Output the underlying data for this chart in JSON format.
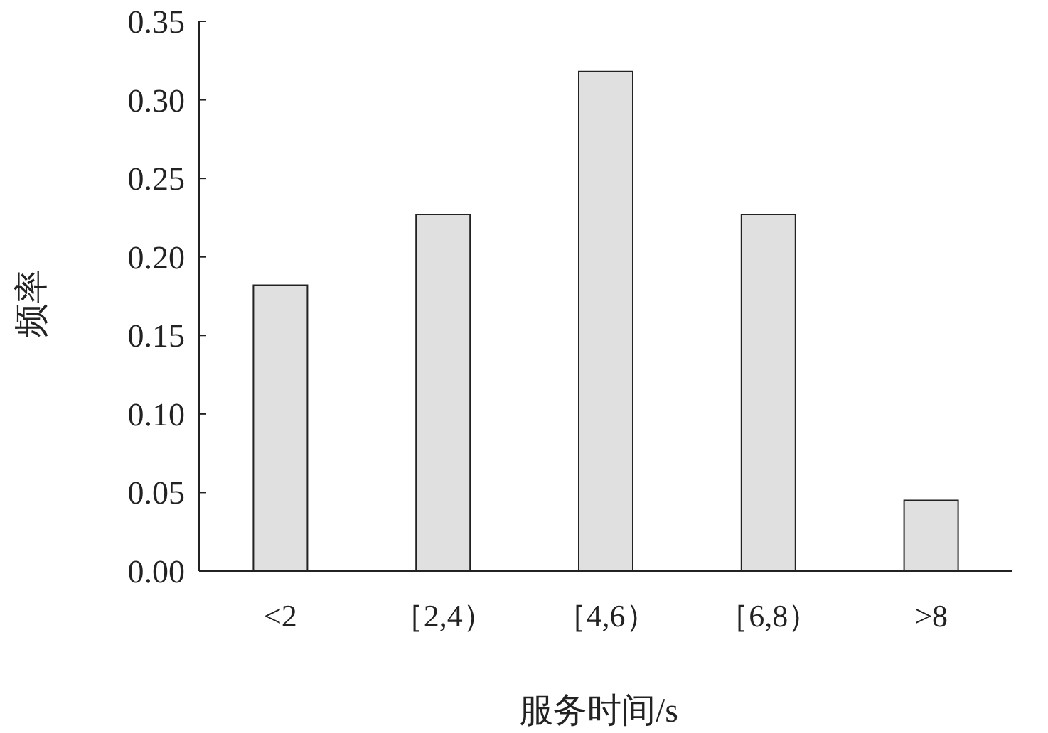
{
  "chart_data": {
    "type": "bar",
    "xlabel": "服务时间/s",
    "ylabel": "频率",
    "categories": [
      "<2",
      "［2,4）",
      "［4,6）",
      "［6,8）",
      ">8"
    ],
    "values": [
      0.182,
      0.227,
      0.318,
      0.227,
      0.045
    ],
    "color": "#e0e0e0",
    "ylim": [
      0,
      0.35
    ],
    "yticks": [
      {
        "value": 0,
        "label": "0.00"
      },
      0.05,
      {
        "value": 0.1,
        "label": "0.10"
      },
      0.15,
      {
        "value": 0.2,
        "label": "0.20"
      },
      0.25,
      {
        "value": 0.3,
        "label": "0.30"
      },
      0.35
    ],
    "orientation": "vertical"
  }
}
